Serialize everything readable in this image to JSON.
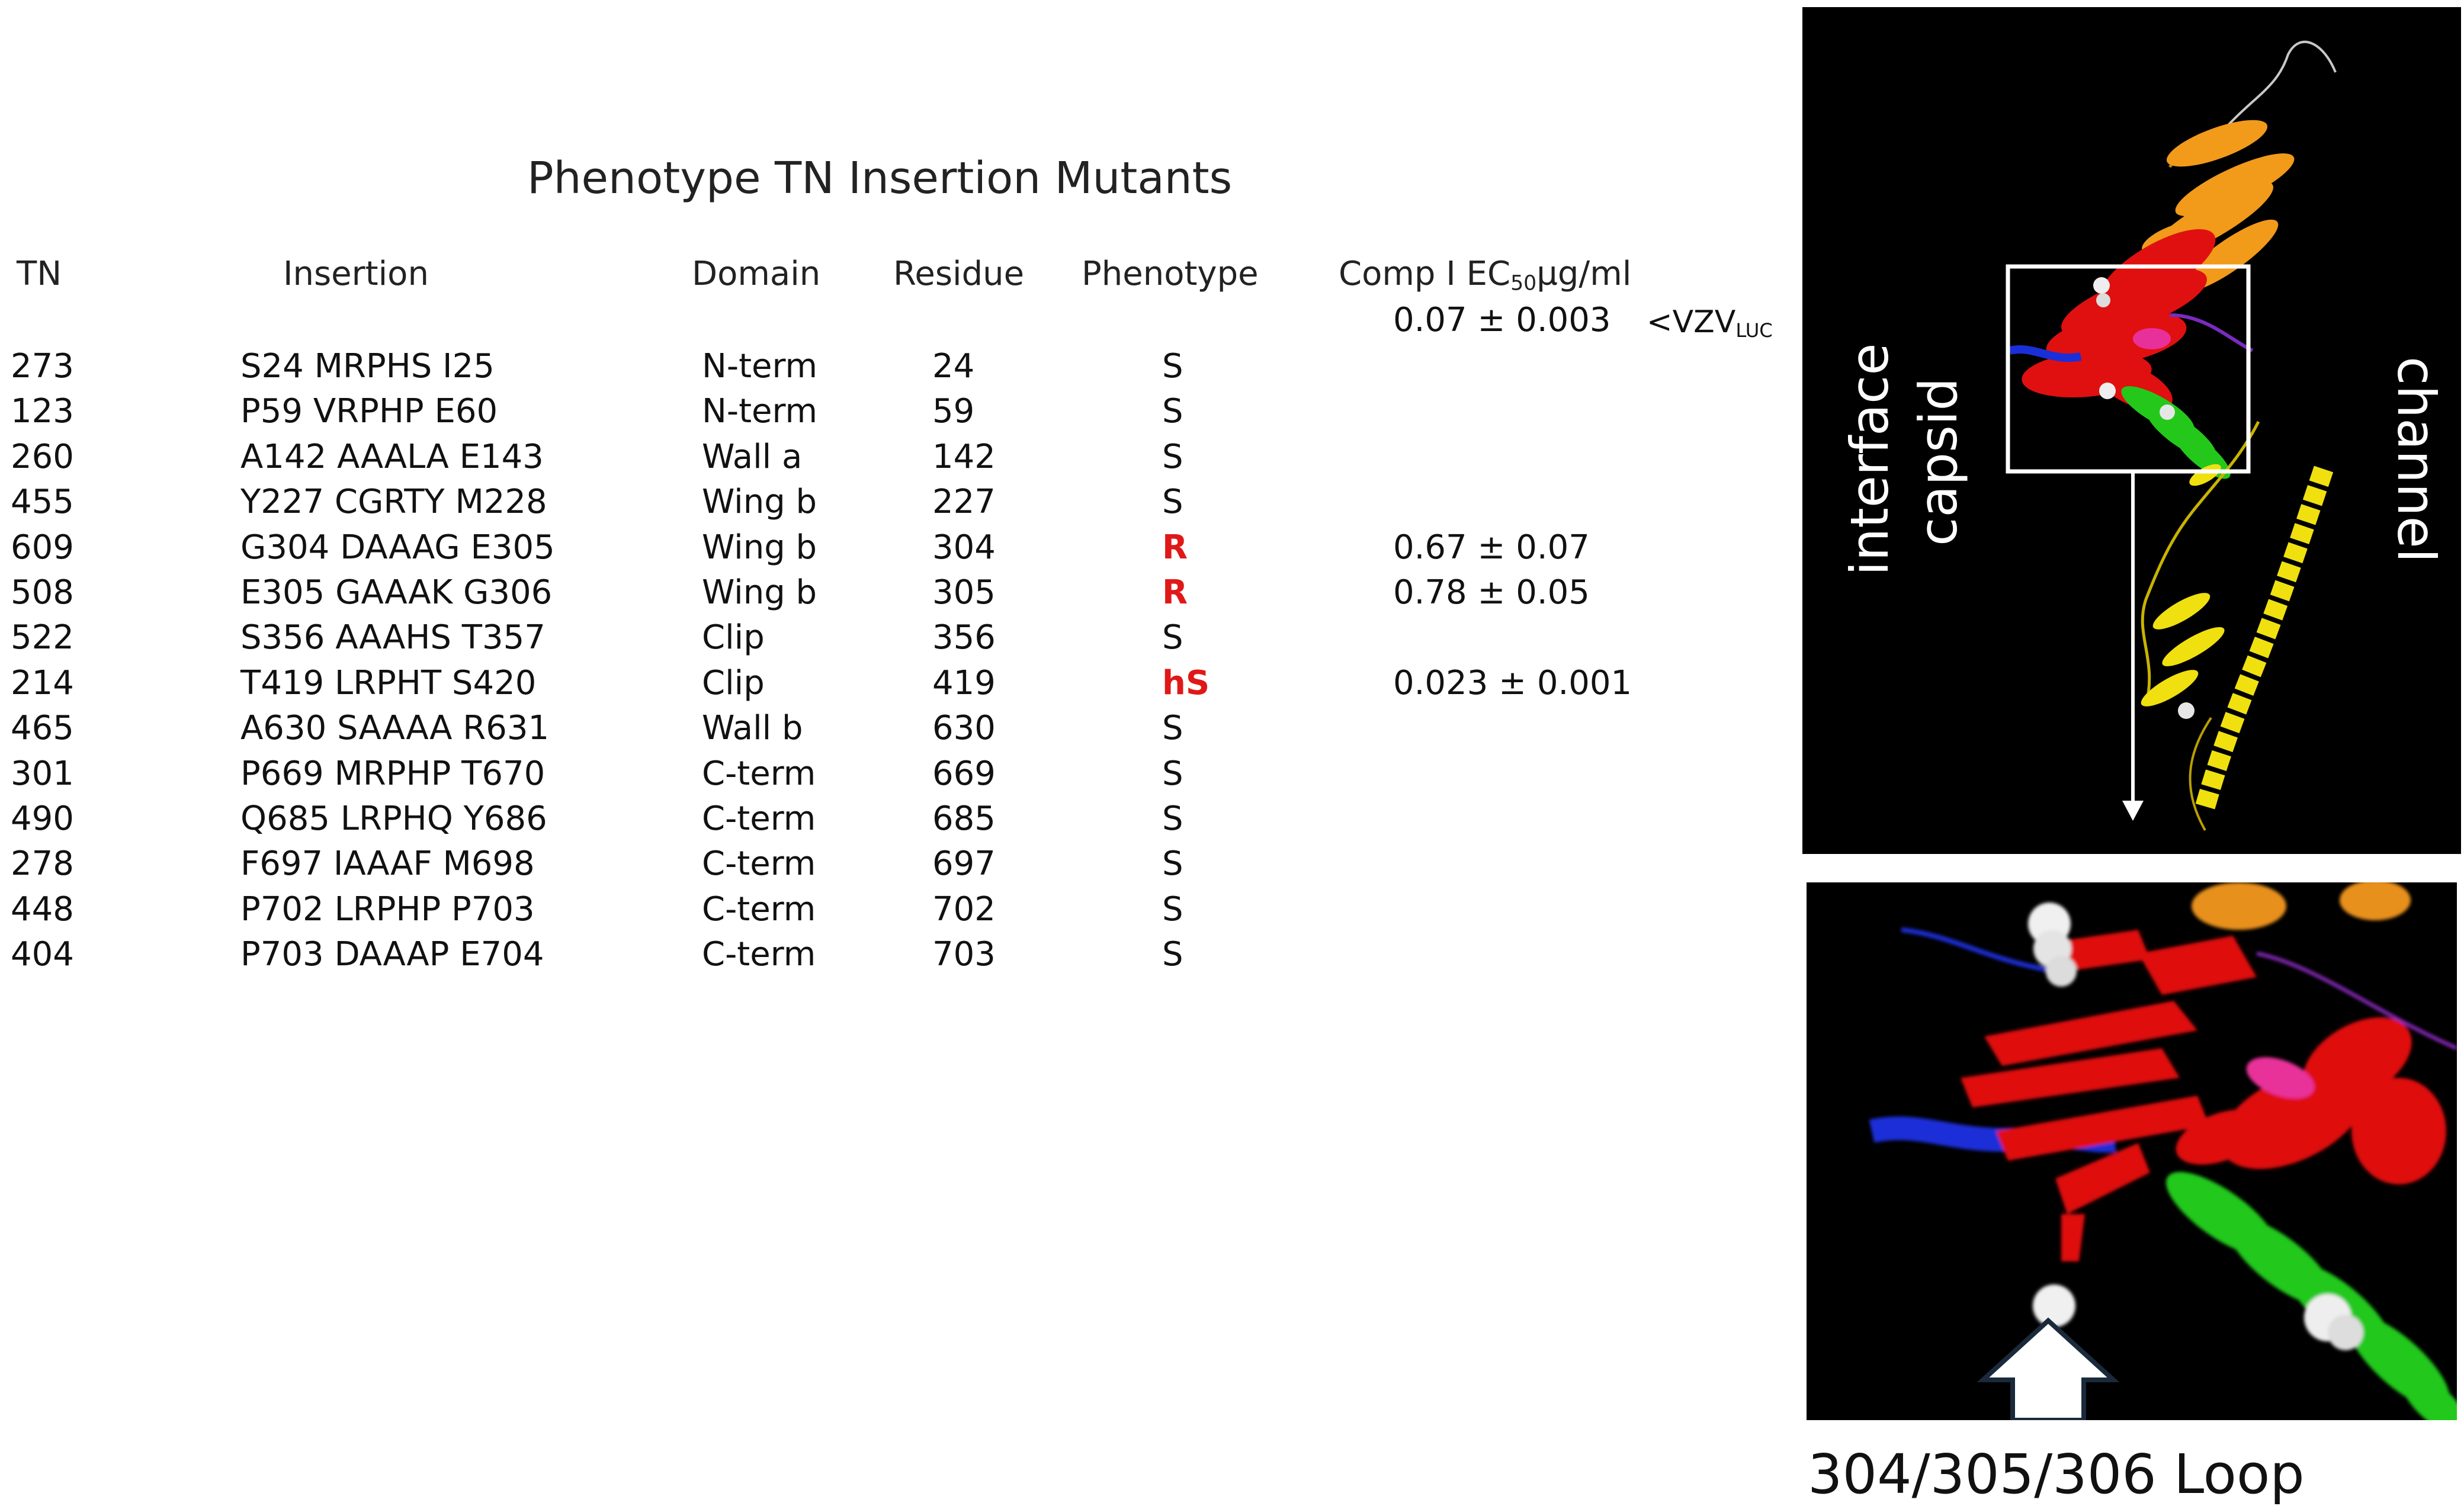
{
  "title": "Phenotype TN Insertion Mutants",
  "columns": {
    "tn": "TN",
    "insertion": "Insertion",
    "domain": "Domain",
    "residue": "Residue",
    "phenotype": "Phenotype",
    "ec50_label": "Comp I EC",
    "ec50_sub": "50",
    "ec50_unit": "µg/ml"
  },
  "reference": {
    "value": "0.07 ± 0.003",
    "label": "<VZV",
    "label_sub": "LUC"
  },
  "rows": [
    {
      "tn": "273",
      "insertion": "S24 MRPHS I25",
      "domain": "N-term",
      "residue": "24",
      "phenotype": "S",
      "ec50": ""
    },
    {
      "tn": "123",
      "insertion": "P59 VRPHP E60",
      "domain": "N-term",
      "residue": "59",
      "phenotype": "S",
      "ec50": ""
    },
    {
      "tn": "260",
      "insertion": "A142 AAALA E143",
      "domain": "Wall a",
      "residue": "142",
      "phenotype": "S",
      "ec50": ""
    },
    {
      "tn": "455",
      "insertion": "Y227 CGRTY M228",
      "domain": "Wing b",
      "residue": "227",
      "phenotype": "S",
      "ec50": ""
    },
    {
      "tn": "609",
      "insertion": "G304 DAAAG E305",
      "domain": "Wing b",
      "residue": "304",
      "phenotype": "R",
      "ec50": "0.67 ± 0.07"
    },
    {
      "tn": "508",
      "insertion": "E305 GAAAK G306",
      "domain": "Wing b",
      "residue": "305",
      "phenotype": "R",
      "ec50": "0.78 ± 0.05"
    },
    {
      "tn": "522",
      "insertion": "S356 AAAHS T357",
      "domain": "Clip",
      "residue": "356",
      "phenotype": "S",
      "ec50": ""
    },
    {
      "tn": "214",
      "insertion": "T419 LRPHT S420",
      "domain": "Clip",
      "residue": "419",
      "phenotype": "hS",
      "ec50": "0.023 ± 0.001"
    },
    {
      "tn": "465",
      "insertion": "A630 SAAAA R631",
      "domain": "Wall b",
      "residue": "630",
      "phenotype": "S",
      "ec50": ""
    },
    {
      "tn": "301",
      "insertion": "P669 MRPHP T670",
      "domain": "C-term",
      "residue": "669",
      "phenotype": "S",
      "ec50": ""
    },
    {
      "tn": "490",
      "insertion": "Q685 LRPHQ Y686",
      "domain": "C-term",
      "residue": "685",
      "phenotype": "S",
      "ec50": ""
    },
    {
      "tn": "278",
      "insertion": "F697 IAAAF M698",
      "domain": "C-term",
      "residue": "697",
      "phenotype": "S",
      "ec50": ""
    },
    {
      "tn": "448",
      "insertion": "P702 LRPHP P703",
      "domain": "C-term",
      "residue": "702",
      "phenotype": "S",
      "ec50": ""
    },
    {
      "tn": "404",
      "insertion": "P703 DAAAP E704",
      "domain": "C-term",
      "residue": "703",
      "phenotype": "S",
      "ec50": ""
    }
  ],
  "structure_labels": {
    "left_1": "capsid",
    "left_2": "interface",
    "right": "channel"
  },
  "caption": "304/305/306 Loop",
  "colors": {
    "highlight_phenotype": "#e01818",
    "panel_bg": "#000000"
  }
}
